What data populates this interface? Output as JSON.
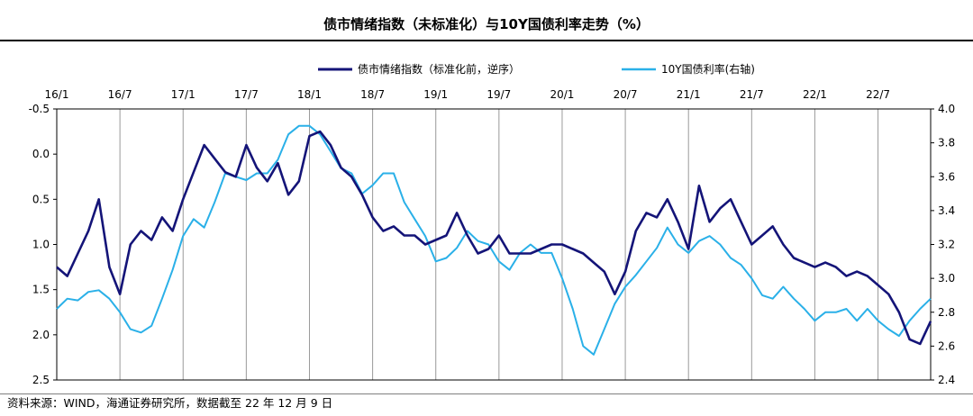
{
  "title": "债市情绪指数（未标准化）与10Y国债利率走势（%）",
  "source": "资料来源：WIND，海通证券研究所，数据截至 22 年 12 月 9 日",
  "chart_data": {
    "type": "line",
    "title": "债市情绪指数（未标准化）与10Y国债利率走势（%）",
    "x_ticks": [
      "16/1",
      "16/7",
      "17/1",
      "17/7",
      "18/1",
      "18/7",
      "19/1",
      "19/7",
      "20/1",
      "20/7",
      "21/1",
      "21/7",
      "22/1",
      "22/7"
    ],
    "x_range": [
      "2016-01",
      "2022-12"
    ],
    "y_left": {
      "ticks": [
        "-0.5",
        "0.0",
        "0.5",
        "1.0",
        "1.5",
        "2.0",
        "2.5"
      ],
      "range": [
        -0.5,
        2.5
      ],
      "reversed": true
    },
    "y_right": {
      "ticks": [
        "4.0",
        "3.8",
        "3.6",
        "3.4",
        "3.2",
        "3.0",
        "2.8",
        "2.6",
        "2.4"
      ],
      "range": [
        2.4,
        4.0
      ]
    },
    "grid": "vertical",
    "legend": "top",
    "series": [
      {
        "name": "债市情绪指数（标准化前，逆序）",
        "axis": "left",
        "color": "#141478",
        "x": [
          "2016-01",
          "2016-02",
          "2016-03",
          "2016-04",
          "2016-05",
          "2016-06",
          "2016-07",
          "2016-08",
          "2016-09",
          "2016-10",
          "2016-11",
          "2016-12",
          "2017-01",
          "2017-02",
          "2017-03",
          "2017-04",
          "2017-05",
          "2017-06",
          "2017-07",
          "2017-08",
          "2017-09",
          "2017-10",
          "2017-11",
          "2017-12",
          "2018-01",
          "2018-02",
          "2018-03",
          "2018-04",
          "2018-05",
          "2018-06",
          "2018-07",
          "2018-08",
          "2018-09",
          "2018-10",
          "2018-11",
          "2018-12",
          "2019-01",
          "2019-02",
          "2019-03",
          "2019-04",
          "2019-05",
          "2019-06",
          "2019-07",
          "2019-08",
          "2019-09",
          "2019-10",
          "2019-11",
          "2019-12",
          "2020-01",
          "2020-02",
          "2020-03",
          "2020-04",
          "2020-05",
          "2020-06",
          "2020-07",
          "2020-08",
          "2020-09",
          "2020-10",
          "2020-11",
          "2020-12",
          "2021-01",
          "2021-02",
          "2021-03",
          "2021-04",
          "2021-05",
          "2021-06",
          "2021-07",
          "2021-08",
          "2021-09",
          "2021-10",
          "2021-11",
          "2021-12",
          "2022-01",
          "2022-02",
          "2022-03",
          "2022-04",
          "2022-05",
          "2022-06",
          "2022-07",
          "2022-08",
          "2022-09",
          "2022-10",
          "2022-11",
          "2022-12"
        ],
        "values": [
          1.25,
          1.35,
          1.1,
          0.85,
          0.5,
          1.25,
          1.55,
          1.0,
          0.85,
          0.95,
          0.7,
          0.85,
          0.5,
          0.2,
          -0.1,
          0.05,
          0.2,
          0.25,
          -0.1,
          0.15,
          0.3,
          0.1,
          0.45,
          0.3,
          -0.2,
          -0.25,
          -0.1,
          0.15,
          0.25,
          0.45,
          0.7,
          0.85,
          0.8,
          0.9,
          0.9,
          1.0,
          0.95,
          0.9,
          0.65,
          0.9,
          1.1,
          1.05,
          0.9,
          1.1,
          1.1,
          1.1,
          1.05,
          1.0,
          1.0,
          1.05,
          1.1,
          1.2,
          1.3,
          1.55,
          1.3,
          0.85,
          0.65,
          0.7,
          0.5,
          0.75,
          1.05,
          0.35,
          0.75,
          0.6,
          0.5,
          0.75,
          1.0,
          0.9,
          0.8,
          1.0,
          1.15,
          1.2,
          1.25,
          1.2,
          1.25,
          1.35,
          1.3,
          1.35,
          1.45,
          1.55,
          1.75,
          2.05,
          2.1,
          1.85
        ]
      },
      {
        "name": "10Y国债利率(右轴)",
        "axis": "right",
        "color": "#2ab0e8",
        "x": [
          "2016-01",
          "2016-02",
          "2016-03",
          "2016-04",
          "2016-05",
          "2016-06",
          "2016-07",
          "2016-08",
          "2016-09",
          "2016-10",
          "2016-11",
          "2016-12",
          "2017-01",
          "2017-02",
          "2017-03",
          "2017-04",
          "2017-05",
          "2017-06",
          "2017-07",
          "2017-08",
          "2017-09",
          "2017-10",
          "2017-11",
          "2017-12",
          "2018-01",
          "2018-02",
          "2018-03",
          "2018-04",
          "2018-05",
          "2018-06",
          "2018-07",
          "2018-08",
          "2018-09",
          "2018-10",
          "2018-11",
          "2018-12",
          "2019-01",
          "2019-02",
          "2019-03",
          "2019-04",
          "2019-05",
          "2019-06",
          "2019-07",
          "2019-08",
          "2019-09",
          "2019-10",
          "2019-11",
          "2019-12",
          "2020-01",
          "2020-02",
          "2020-03",
          "2020-04",
          "2020-05",
          "2020-06",
          "2020-07",
          "2020-08",
          "2020-09",
          "2020-10",
          "2020-11",
          "2020-12",
          "2021-01",
          "2021-02",
          "2021-03",
          "2021-04",
          "2021-05",
          "2021-06",
          "2021-07",
          "2021-08",
          "2021-09",
          "2021-10",
          "2021-11",
          "2021-12",
          "2022-01",
          "2022-02",
          "2022-03",
          "2022-04",
          "2022-05",
          "2022-06",
          "2022-07",
          "2022-08",
          "2022-09",
          "2022-10",
          "2022-11",
          "2022-12"
        ],
        "values": [
          2.82,
          2.88,
          2.87,
          2.92,
          2.93,
          2.88,
          2.8,
          2.7,
          2.68,
          2.72,
          2.88,
          3.05,
          3.25,
          3.35,
          3.3,
          3.45,
          3.62,
          3.6,
          3.58,
          3.62,
          3.62,
          3.7,
          3.85,
          3.9,
          3.9,
          3.85,
          3.75,
          3.65,
          3.62,
          3.5,
          3.55,
          3.62,
          3.62,
          3.45,
          3.35,
          3.25,
          3.1,
          3.12,
          3.18,
          3.28,
          3.22,
          3.2,
          3.1,
          3.05,
          3.15,
          3.2,
          3.15,
          3.15,
          3.0,
          2.82,
          2.6,
          2.55,
          2.7,
          2.85,
          2.95,
          3.02,
          3.1,
          3.18,
          3.3,
          3.2,
          3.15,
          3.22,
          3.25,
          3.2,
          3.12,
          3.08,
          3.0,
          2.9,
          2.88,
          2.95,
          2.88,
          2.82,
          2.75,
          2.8,
          2.8,
          2.82,
          2.75,
          2.82,
          2.75,
          2.7,
          2.66,
          2.75,
          2.82,
          2.88
        ]
      }
    ]
  }
}
